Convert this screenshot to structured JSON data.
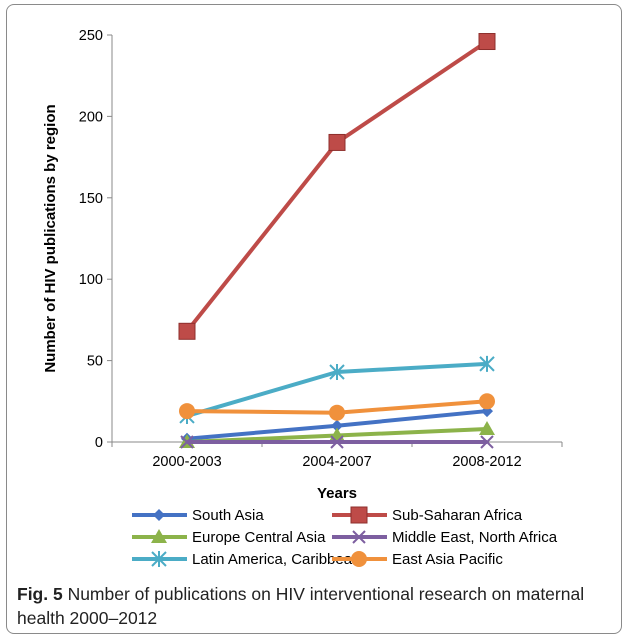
{
  "chart_data": {
    "type": "line",
    "xlabel": "Years",
    "ylabel": "Number of HIV publications by region",
    "categories": [
      "2000-2003",
      "2004-2007",
      "2008-2012"
    ],
    "ylim": [
      0,
      250
    ],
    "yticks": [
      0,
      50,
      100,
      150,
      200,
      250
    ],
    "series": [
      {
        "name": "South Asia",
        "values": [
          2,
          10,
          19
        ],
        "color": "#4472C4",
        "marker": "diamond"
      },
      {
        "name": "Sub-Saharan Africa",
        "values": [
          68,
          184,
          246
        ],
        "color": "#BE4B48",
        "marker": "square"
      },
      {
        "name": "Europe Central Asia",
        "values": [
          0,
          4,
          8
        ],
        "color": "#8CB34A",
        "marker": "triangle"
      },
      {
        "name": "Middle East, North Africa",
        "values": [
          0,
          0,
          0
        ],
        "color": "#7D5FA0",
        "marker": "x"
      },
      {
        "name": "Latin America, Caribbean",
        "values": [
          16,
          43,
          48
        ],
        "color": "#4BACC6",
        "marker": "star"
      },
      {
        "name": "East Asia Pacific",
        "values": [
          19,
          18,
          25
        ],
        "color": "#F0913C",
        "marker": "circle"
      }
    ],
    "grid": false,
    "legend_position": "bottom"
  },
  "caption": {
    "label": "Fig. 5",
    "text": " Number of publications on HIV interventional research on maternal health 2000–2012"
  }
}
